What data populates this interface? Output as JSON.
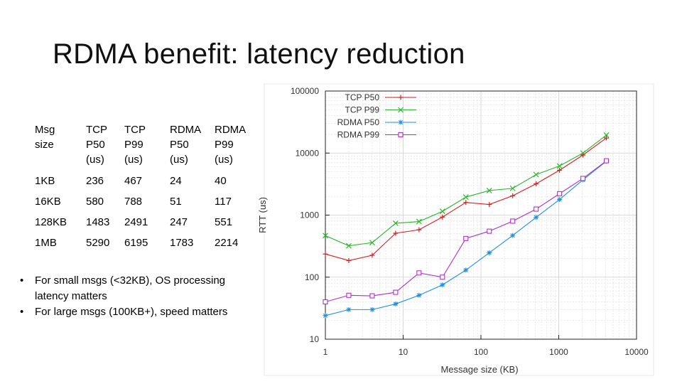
{
  "slide": {
    "title": "RDMA benefit: latency reduction",
    "table": {
      "headers": [
        [
          "Msg",
          "size"
        ],
        [
          "TCP",
          "P50",
          "(us)"
        ],
        [
          "TCP",
          "P99",
          "(us)"
        ],
        [
          "RDMA",
          "P50",
          "(us)"
        ],
        [
          "RDMA",
          "P99",
          "(us)"
        ]
      ],
      "rows": [
        [
          "1KB",
          "236",
          "467",
          "24",
          "40"
        ],
        [
          "16KB",
          "580",
          "788",
          "51",
          "117"
        ],
        [
          "128KB",
          "1483",
          "2491",
          "247",
          "551"
        ],
        [
          "1MB",
          "5290",
          "6195",
          "1783",
          "2214"
        ]
      ]
    },
    "bullets": [
      "For small msgs (<32KB), OS processing latency matters",
      "For large msgs (100KB+), speed matters"
    ],
    "bullet_symbol": "•"
  },
  "chart_data": {
    "type": "line",
    "title": "",
    "xlabel": "Message size (KB)",
    "ylabel": "RTT (us)",
    "xscale": "log",
    "yscale": "log",
    "xlim": [
      1,
      10000
    ],
    "ylim": [
      10,
      100000
    ],
    "x_ticks": [
      1,
      10,
      100,
      1000,
      10000
    ],
    "y_ticks": [
      10,
      100,
      1000,
      10000,
      100000
    ],
    "x_tick_labels": [
      "1",
      "10",
      "100",
      "1000",
      "10000"
    ],
    "y_tick_labels": [
      "10",
      "100",
      "1000",
      "10000",
      "100000"
    ],
    "grid": true,
    "legend_position": "top-left",
    "x": [
      1,
      2,
      4,
      8,
      16,
      32,
      64,
      128,
      256,
      512,
      1024,
      2048,
      4096
    ],
    "series": [
      {
        "name": "TCP P50",
        "color": "#d62020",
        "marker": "plus",
        "values": [
          236,
          185,
          225,
          510,
          580,
          930,
          1600,
          1483,
          2050,
          3200,
          5290,
          9300,
          17500
        ]
      },
      {
        "name": "TCP P99",
        "color": "#2db52d",
        "marker": "x",
        "values": [
          467,
          320,
          360,
          740,
          788,
          1150,
          1950,
          2491,
          2700,
          4500,
          6195,
          10000,
          19500
        ]
      },
      {
        "name": "RDMA P50",
        "color": "#1e90e0",
        "marker": "asterisk",
        "values": [
          24,
          30,
          30,
          37,
          51,
          75,
          130,
          247,
          470,
          920,
          1783,
          3700,
          7400
        ]
      },
      {
        "name": "RDMA P99",
        "color": "#b030c8",
        "marker": "square",
        "values": [
          40,
          51,
          50,
          57,
          117,
          100,
          420,
          551,
          800,
          1250,
          2214,
          3900,
          7500
        ]
      }
    ]
  }
}
